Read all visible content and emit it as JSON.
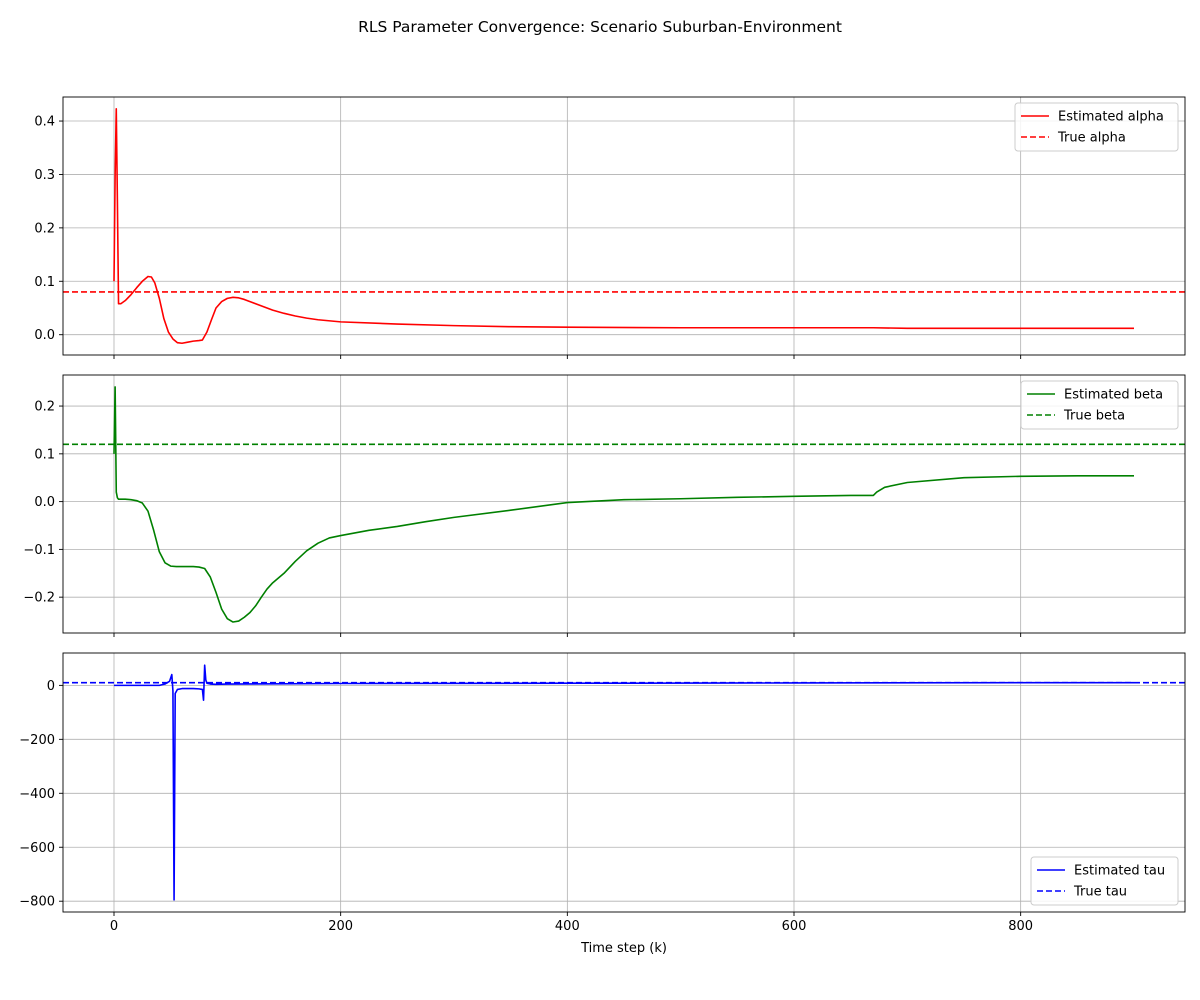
{
  "figure": {
    "title": "RLS Parameter Convergence: Scenario Suburban-Environment",
    "xlabel": "Time step (k)"
  },
  "chart_data": [
    {
      "type": "line",
      "panel": "alpha",
      "xlim": [
        -45,
        945
      ],
      "ylim": [
        -0.038,
        0.445
      ],
      "xticks": [
        0,
        200,
        400,
        600,
        800
      ],
      "yticks": [
        0.0,
        0.1,
        0.2,
        0.3,
        0.4
      ],
      "ytick_labels": [
        "0.0",
        "0.1",
        "0.2",
        "0.3",
        "0.4"
      ],
      "grid": true,
      "legend_position": "top-right",
      "series": [
        {
          "name": "Estimated alpha",
          "color": "#ff0000",
          "style": "solid",
          "x": [
            0,
            1,
            2,
            3,
            4,
            6,
            10,
            15,
            20,
            25,
            30,
            33,
            36,
            40,
            44,
            48,
            52,
            56,
            60,
            65,
            70,
            75,
            78,
            82,
            86,
            90,
            95,
            100,
            105,
            110,
            115,
            120,
            130,
            140,
            150,
            160,
            170,
            180,
            200,
            250,
            300,
            350,
            400,
            500,
            600,
            670,
            700,
            800,
            900
          ],
          "y": [
            0.1,
            0.3,
            0.423,
            0.25,
            0.058,
            0.058,
            0.064,
            0.075,
            0.088,
            0.1,
            0.109,
            0.108,
            0.097,
            0.068,
            0.03,
            0.005,
            -0.008,
            -0.015,
            -0.016,
            -0.014,
            -0.012,
            -0.011,
            -0.01,
            0.005,
            0.028,
            0.05,
            0.062,
            0.068,
            0.07,
            0.069,
            0.066,
            0.062,
            0.054,
            0.046,
            0.04,
            0.035,
            0.031,
            0.028,
            0.024,
            0.02,
            0.017,
            0.015,
            0.014,
            0.013,
            0.013,
            0.013,
            0.012,
            0.012,
            0.012
          ]
        },
        {
          "name": "True alpha",
          "color": "#ff0000",
          "style": "dashed",
          "constant": 0.08
        }
      ]
    },
    {
      "type": "line",
      "panel": "beta",
      "xlim": [
        -45,
        945
      ],
      "ylim": [
        -0.275,
        0.265
      ],
      "xticks": [
        0,
        200,
        400,
        600,
        800
      ],
      "yticks": [
        -0.2,
        -0.1,
        0.0,
        0.1,
        0.2
      ],
      "ytick_labels": [
        "−0.2",
        "−0.1",
        "0.0",
        "0.1",
        "0.2"
      ],
      "grid": true,
      "legend_position": "top-right",
      "series": [
        {
          "name": "Estimated beta",
          "color": "#008000",
          "style": "solid",
          "x": [
            0,
            1,
            2,
            3,
            4,
            6,
            10,
            15,
            20,
            25,
            30,
            35,
            40,
            45,
            50,
            55,
            60,
            65,
            70,
            75,
            80,
            85,
            90,
            95,
            100,
            105,
            110,
            115,
            120,
            125,
            130,
            135,
            140,
            150,
            160,
            170,
            180,
            190,
            200,
            225,
            250,
            275,
            300,
            350,
            400,
            450,
            500,
            550,
            600,
            650,
            670,
            673,
            680,
            700,
            750,
            800,
            850,
            900
          ],
          "y": [
            0.1,
            0.24,
            0.02,
            0.008,
            0.005,
            0.005,
            0.005,
            0.004,
            0.002,
            -0.003,
            -0.02,
            -0.06,
            -0.105,
            -0.128,
            -0.135,
            -0.136,
            -0.136,
            -0.136,
            -0.136,
            -0.137,
            -0.14,
            -0.158,
            -0.19,
            -0.225,
            -0.245,
            -0.252,
            -0.25,
            -0.242,
            -0.232,
            -0.218,
            -0.2,
            -0.183,
            -0.17,
            -0.15,
            -0.125,
            -0.103,
            -0.087,
            -0.076,
            -0.071,
            -0.06,
            -0.052,
            -0.042,
            -0.033,
            -0.018,
            -0.002,
            0.004,
            0.006,
            0.009,
            0.011,
            0.013,
            0.013,
            0.02,
            0.03,
            0.04,
            0.05,
            0.053,
            0.054,
            0.054
          ]
        },
        {
          "name": "True beta",
          "color": "#008000",
          "style": "dashed",
          "constant": 0.12
        }
      ]
    },
    {
      "type": "line",
      "panel": "tau",
      "xlim": [
        -45,
        945
      ],
      "ylim": [
        -840,
        120
      ],
      "xticks": [
        0,
        200,
        400,
        600,
        800
      ],
      "yticks": [
        -800,
        -600,
        -400,
        -200,
        0
      ],
      "ytick_labels": [
        "−800",
        "−600",
        "−400",
        "−200",
        "0"
      ],
      "grid": true,
      "legend_position": "bottom-right",
      "series": [
        {
          "name": "Estimated tau",
          "color": "#0000ff",
          "style": "solid",
          "x": [
            0,
            10,
            20,
            30,
            40,
            45,
            49,
            51,
            52,
            53,
            54,
            56,
            60,
            65,
            70,
            75,
            78,
            79,
            80,
            81,
            82,
            85,
            90,
            100,
            200,
            400,
            600,
            800,
            900
          ],
          "y": [
            0,
            0,
            0,
            0,
            0,
            5,
            15,
            40,
            -20,
            -795,
            -30,
            -15,
            -12,
            -12,
            -12,
            -13,
            -15,
            -55,
            75,
            20,
            8,
            5,
            4,
            5,
            7,
            8,
            9,
            10,
            10
          ]
        },
        {
          "name": "True tau",
          "color": "#0000ff",
          "style": "dashed",
          "constant": 10
        }
      ]
    }
  ]
}
